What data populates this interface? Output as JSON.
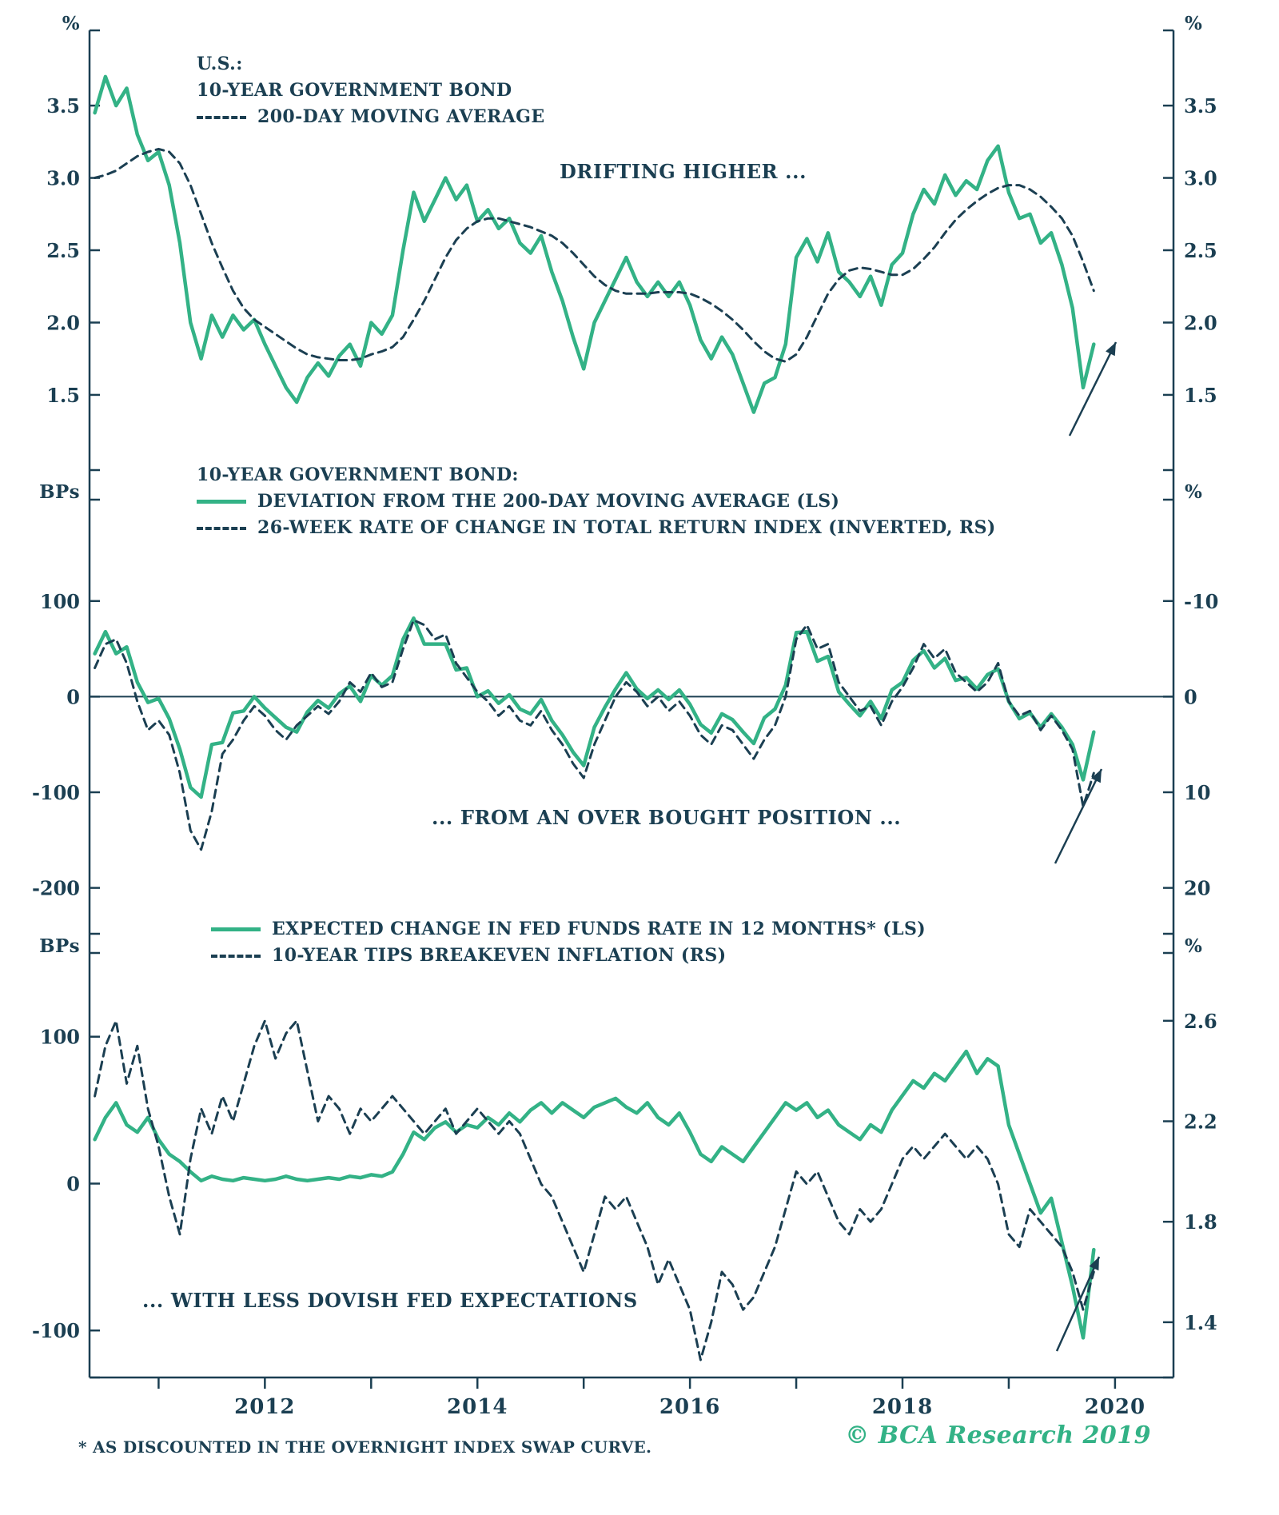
{
  "colors": {
    "green": "#33B286",
    "dark": "#1B3F52"
  },
  "footer": {
    "footnote": "* AS DISCOUNTED IN THE OVERNIGHT INDEX SWAP CURVE.",
    "copyright": "© BCA Research 2019"
  },
  "chart_data": {
    "type": "line",
    "x_start": 2010.4,
    "x_step": 0.1,
    "x_axis": {
      "min": 2010.35,
      "max": 2020.55,
      "tick_years": [
        2011,
        2012,
        2013,
        2014,
        2015,
        2016,
        2017,
        2018,
        2019,
        2020
      ],
      "tick_labels": [
        {
          "v": 2012,
          "label": "2012"
        },
        {
          "v": 2014,
          "label": "2014"
        },
        {
          "v": 2016,
          "label": "2016"
        },
        {
          "v": 2018,
          "label": "2018"
        },
        {
          "v": 2020,
          "label": "2020"
        }
      ]
    },
    "panels": [
      {
        "name": "yield-panel",
        "annotation": "DRIFTING HIGHER ...",
        "legend": {
          "heading": "U.S.:",
          "items": [
            {
              "label": "10-YEAR GOVERNMENT BOND",
              "style": "solid-green"
            },
            {
              "label": "200-DAY MOVING AVERAGE",
              "style": "dashed-dark"
            }
          ]
        },
        "left_axis": {
          "unit": "%",
          "range": [
            0.98,
            4.02
          ],
          "ticks": [
            3.5,
            3.0,
            2.5,
            2.0,
            1.5
          ],
          "tick_labels": [
            "3.5",
            "3.0",
            "2.5",
            "2.0",
            "1.5"
          ]
        },
        "right_axis": {
          "unit": "%",
          "range": [
            0.98,
            4.02
          ],
          "ticks": [
            3.5,
            3.0,
            2.5,
            2.0,
            1.5
          ],
          "tick_labels": [
            "3.5",
            "3.0",
            "2.5",
            "2.0",
            "1.5"
          ]
        },
        "series": [
          {
            "name": "US 10-year government bond yield",
            "axis": "left",
            "style": "solid-green",
            "values": [
              3.45,
              3.7,
              3.5,
              3.62,
              3.3,
              3.12,
              3.18,
              2.95,
              2.55,
              2.0,
              1.75,
              2.05,
              1.9,
              2.05,
              1.95,
              2.02,
              1.85,
              1.7,
              1.55,
              1.45,
              1.62,
              1.72,
              1.63,
              1.77,
              1.85,
              1.7,
              2.0,
              1.92,
              2.05,
              2.5,
              2.9,
              2.7,
              2.85,
              3.0,
              2.85,
              2.95,
              2.7,
              2.78,
              2.65,
              2.72,
              2.55,
              2.48,
              2.6,
              2.35,
              2.15,
              1.9,
              1.68,
              2.0,
              2.15,
              2.3,
              2.45,
              2.28,
              2.18,
              2.28,
              2.18,
              2.28,
              2.12,
              1.88,
              1.75,
              1.9,
              1.78,
              1.58,
              1.38,
              1.58,
              1.62,
              1.85,
              2.45,
              2.58,
              2.42,
              2.62,
              2.35,
              2.28,
              2.18,
              2.32,
              2.12,
              2.4,
              2.48,
              2.75,
              2.92,
              2.82,
              3.02,
              2.88,
              2.98,
              2.92,
              3.12,
              3.22,
              2.9,
              2.72,
              2.75,
              2.55,
              2.62,
              2.4,
              2.1,
              1.55,
              1.85
            ]
          },
          {
            "name": "200-day moving average",
            "axis": "left",
            "style": "dashed-dark",
            "values": [
              3.0,
              3.02,
              3.05,
              3.1,
              3.15,
              3.18,
              3.2,
              3.18,
              3.1,
              2.95,
              2.75,
              2.55,
              2.38,
              2.22,
              2.1,
              2.02,
              1.97,
              1.92,
              1.87,
              1.82,
              1.78,
              1.76,
              1.75,
              1.74,
              1.74,
              1.75,
              1.78,
              1.8,
              1.83,
              1.9,
              2.02,
              2.15,
              2.3,
              2.45,
              2.57,
              2.65,
              2.7,
              2.72,
              2.72,
              2.7,
              2.68,
              2.66,
              2.63,
              2.6,
              2.55,
              2.48,
              2.4,
              2.32,
              2.26,
              2.22,
              2.2,
              2.2,
              2.2,
              2.21,
              2.21,
              2.21,
              2.2,
              2.17,
              2.13,
              2.08,
              2.02,
              1.95,
              1.87,
              1.8,
              1.75,
              1.73,
              1.78,
              1.9,
              2.05,
              2.2,
              2.3,
              2.36,
              2.38,
              2.37,
              2.35,
              2.33,
              2.33,
              2.37,
              2.44,
              2.52,
              2.62,
              2.71,
              2.78,
              2.84,
              2.89,
              2.93,
              2.95,
              2.95,
              2.92,
              2.87,
              2.8,
              2.72,
              2.6,
              2.42,
              2.22
            ]
          }
        ]
      },
      {
        "name": "deviation-panel",
        "annotation": "... FROM AN OVER BOUGHT POSITION ...",
        "zero_line": true,
        "legend": {
          "heading": "10-YEAR GOVERNMENT BOND:",
          "items": [
            {
              "label": "DEVIATION FROM THE 200-DAY MOVING AVERAGE (LS)",
              "style": "solid-green"
            },
            {
              "label": "26-WEEK RATE OF CHANGE IN TOTAL RETURN INDEX (INVERTED, RS)",
              "style": "dashed-dark"
            }
          ]
        },
        "left_axis": {
          "unit": "BPs",
          "range": [
            -248,
            206
          ],
          "ticks": [
            100,
            0,
            -100,
            -200
          ],
          "tick_labels": [
            "100",
            "0",
            "-100",
            "-200"
          ]
        },
        "right_axis": {
          "unit": "%",
          "range": [
            -20.6,
            24.8
          ],
          "flip": true,
          "note": "inverted",
          "ticks": [
            -10,
            0,
            10,
            20
          ],
          "tick_labels": [
            "-10",
            "0",
            "10",
            "20"
          ]
        },
        "series": [
          {
            "name": "Deviation from 200-day moving average (bps)",
            "axis": "left",
            "style": "solid-green",
            "values": [
              45,
              68,
              45,
              52,
              15,
              -6,
              -2,
              -23,
              -55,
              -95,
              -105,
              -50,
              -48,
              -17,
              -15,
              0,
              -12,
              -22,
              -32,
              -37,
              -16,
              -4,
              -12,
              3,
              11,
              -5,
              22,
              12,
              22,
              60,
              82,
              55,
              55,
              55,
              28,
              30,
              0,
              6,
              -7,
              2,
              -13,
              -18,
              -3,
              -25,
              -40,
              -58,
              -72,
              -32,
              -11,
              8,
              25,
              8,
              -2,
              7,
              -3,
              7,
              -8,
              -29,
              -38,
              -18,
              -24,
              -37,
              -49,
              -22,
              -13,
              12,
              67,
              68,
              37,
              42,
              5,
              -8,
              -20,
              -5,
              -23,
              7,
              15,
              38,
              48,
              30,
              40,
              17,
              20,
              8,
              23,
              29,
              -5,
              -23,
              -17,
              -32,
              -18,
              -32,
              -50,
              -87,
              -37
            ]
          },
          {
            "name": "26-week rate of change in total return index (inverted, %)",
            "axis": "right",
            "style": "dashed-dark",
            "values": [
              -3.0,
              -5.5,
              -6.0,
              -3.5,
              0.5,
              3.5,
              2.5,
              4.0,
              8.0,
              14.0,
              16.0,
              12.0,
              6.0,
              4.5,
              2.5,
              1.0,
              2.0,
              3.5,
              4.5,
              3.0,
              2.0,
              1.0,
              1.8,
              0.5,
              -1.5,
              -0.5,
              -2.5,
              -1.0,
              -1.5,
              -5.0,
              -8.0,
              -7.5,
              -6.0,
              -6.5,
              -3.5,
              -2.0,
              -0.5,
              0.5,
              2.0,
              1.0,
              2.5,
              3.0,
              1.5,
              3.5,
              5.0,
              7.0,
              8.5,
              5.0,
              2.5,
              0.0,
              -1.5,
              -0.5,
              1.0,
              0.0,
              1.5,
              0.5,
              2.0,
              4.0,
              5.0,
              3.0,
              3.5,
              5.0,
              6.5,
              4.5,
              3.0,
              0.0,
              -6.0,
              -7.5,
              -5.0,
              -5.5,
              -1.5,
              0.0,
              1.5,
              1.0,
              3.0,
              0.5,
              -1.0,
              -3.0,
              -5.5,
              -4.0,
              -5.0,
              -2.5,
              -1.5,
              -0.5,
              -1.5,
              -3.5,
              0.5,
              2.0,
              1.5,
              3.5,
              2.0,
              3.5,
              5.5,
              11.5,
              8.0
            ]
          }
        ]
      },
      {
        "name": "fed-expectations-panel",
        "annotation": "... WITH LESS DOVISH FED EXPECTATIONS",
        "legend": {
          "heading": "",
          "items": [
            {
              "label": "EXPECTED CHANGE IN FED FUNDS RATE IN 12 MONTHS* (LS)",
              "style": "solid-green"
            },
            {
              "label": "10-YEAR TIPS BREAKEVEN INFLATION (RS)",
              "style": "dashed-dark"
            }
          ]
        },
        "left_axis": {
          "unit": "BPs",
          "range": [
            -132,
            157
          ],
          "ticks": [
            100,
            0,
            -100
          ],
          "tick_labels": [
            "100",
            "0",
            "-100"
          ]
        },
        "right_axis": {
          "unit": "%",
          "range": [
            1.18,
            2.87
          ],
          "ticks": [
            2.6,
            2.2,
            1.8,
            1.4
          ],
          "tick_labels": [
            "2.6",
            "2.2",
            "1.8",
            "1.4"
          ]
        },
        "series": [
          {
            "name": "Expected change in fed funds rate in 12 months (bps)",
            "axis": "left",
            "style": "solid-green",
            "values": [
              30,
              45,
              55,
              40,
              35,
              45,
              30,
              20,
              15,
              8,
              2,
              5,
              3,
              2,
              4,
              3,
              2,
              3,
              5,
              3,
              2,
              3,
              4,
              3,
              5,
              4,
              6,
              5,
              8,
              20,
              35,
              30,
              38,
              42,
              35,
              40,
              38,
              45,
              40,
              48,
              42,
              50,
              55,
              48,
              55,
              50,
              45,
              52,
              55,
              58,
              52,
              48,
              55,
              45,
              40,
              48,
              35,
              20,
              15,
              25,
              20,
              15,
              25,
              35,
              45,
              55,
              50,
              55,
              45,
              50,
              40,
              35,
              30,
              40,
              35,
              50,
              60,
              70,
              65,
              75,
              70,
              80,
              90,
              75,
              85,
              80,
              40,
              20,
              0,
              -20,
              -10,
              -40,
              -70,
              -105,
              -45
            ]
          },
          {
            "name": "10-year TIPS breakeven inflation (%)",
            "axis": "right",
            "style": "dashed-dark",
            "values": [
              2.3,
              2.5,
              2.6,
              2.35,
              2.5,
              2.25,
              2.1,
              1.9,
              1.75,
              2.05,
              2.25,
              2.15,
              2.3,
              2.2,
              2.35,
              2.5,
              2.6,
              2.45,
              2.55,
              2.6,
              2.4,
              2.2,
              2.3,
              2.25,
              2.15,
              2.25,
              2.2,
              2.25,
              2.3,
              2.25,
              2.2,
              2.15,
              2.2,
              2.25,
              2.15,
              2.2,
              2.25,
              2.2,
              2.15,
              2.2,
              2.15,
              2.05,
              1.95,
              1.9,
              1.8,
              1.7,
              1.6,
              1.75,
              1.9,
              1.85,
              1.9,
              1.8,
              1.7,
              1.55,
              1.65,
              1.55,
              1.45,
              1.25,
              1.4,
              1.6,
              1.55,
              1.45,
              1.5,
              1.6,
              1.7,
              1.85,
              2.0,
              1.95,
              2.0,
              1.9,
              1.8,
              1.75,
              1.85,
              1.8,
              1.85,
              1.95,
              2.05,
              2.1,
              2.05,
              2.1,
              2.15,
              2.1,
              2.05,
              2.1,
              2.05,
              1.95,
              1.75,
              1.7,
              1.85,
              1.8,
              1.75,
              1.7,
              1.6,
              1.45,
              1.6
            ]
          }
        ]
      }
    ]
  }
}
